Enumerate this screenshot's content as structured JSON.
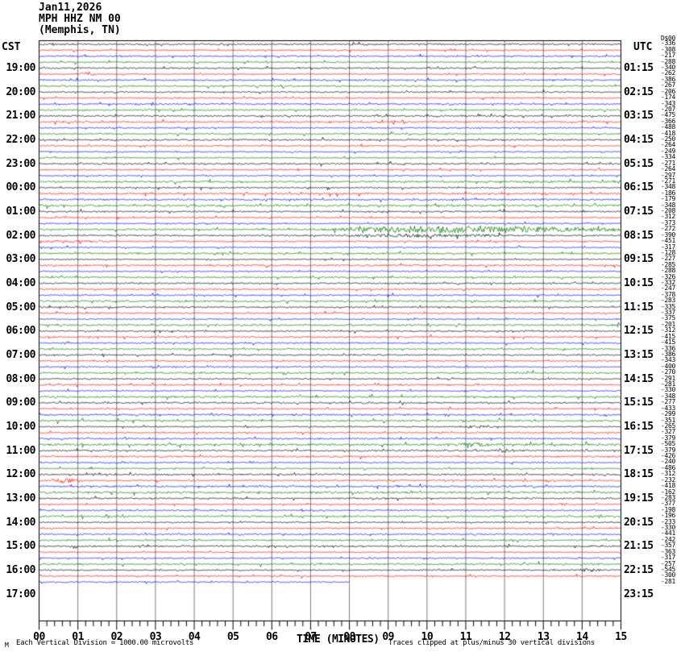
{
  "header": {
    "date": "Jan11,2026",
    "station": "MPH HHZ NM 00",
    "location": "(Memphis, TN)"
  },
  "corner_labels": {
    "left_timezone": "CST",
    "right_timezone": "UTC",
    "dc_column_header": "D$00"
  },
  "footer": {
    "scale_note": "Each Vertical Division = 1000.00 microvolts",
    "x_axis_title": "TIME (MINUTES)",
    "clip_note": "Traces clipped at plus/minus 30 vertical divisions",
    "watermark": "M"
  },
  "colors": {
    "background": "#ffffff",
    "grid": "#808080",
    "border": "#000000",
    "text": "#000000"
  },
  "chart_data": {
    "type": "line",
    "subtype": "helicorder-seismogram",
    "title": "MPH HHZ NM 00 (Memphis, TN) Jan11,2026",
    "xlabel": "TIME (MINUTES)",
    "x_range": [
      0,
      15
    ],
    "minutes_per_row": 15,
    "grid": "vertical-every-minute",
    "minute_labels": [
      "00",
      "01",
      "02",
      "03",
      "04",
      "05",
      "06",
      "07",
      "08",
      "09",
      "10",
      "11",
      "12",
      "13",
      "14",
      "15"
    ],
    "rows_total": 96,
    "traces_plotted": 91,
    "row_color_cycle": [
      "#000000",
      "#ff0000",
      "#0000ff",
      "#007700"
    ],
    "left_time_labels": [
      "19:00",
      "20:00",
      "21:00",
      "22:00",
      "23:00",
      "00:00",
      "01:00",
      "02:00",
      "03:00",
      "04:00",
      "05:00",
      "06:00",
      "07:00",
      "08:00",
      "09:00",
      "10:00",
      "11:00",
      "12:00",
      "13:00",
      "14:00",
      "15:00",
      "16:00",
      "17:00"
    ],
    "right_time_labels": [
      "01:15",
      "02:15",
      "03:15",
      "04:15",
      "05:15",
      "06:15",
      "07:15",
      "08:15",
      "09:15",
      "10:15",
      "11:15",
      "12:15",
      "13:15",
      "14:15",
      "15:15",
      "16:15",
      "17:15",
      "18:15",
      "19:15",
      "20:15",
      "21:15",
      "22:15",
      "23:15"
    ],
    "dc_offsets": [
      -336,
      -308,
      -217,
      -288,
      -340,
      -262,
      -386,
      -267,
      -206,
      -174,
      -343,
      -207,
      -475,
      -366,
      -488,
      -418,
      -250,
      -264,
      -249,
      -334,
      -271,
      -264,
      -297,
      -271,
      -348,
      -186,
      -179,
      -348,
      -208,
      -312,
      -373,
      -272,
      -390,
      -451,
      -317,
      -128,
      -227,
      -285,
      -288,
      -326,
      -332,
      -247,
      -378,
      -283,
      -335,
      -337,
      -375,
      -201,
      -312,
      -415,
      -415,
      -336,
      -386,
      -343,
      -400,
      -270,
      -291,
      -281,
      -330,
      -348,
      -277,
      -433,
      -299,
      -351,
      -265,
      -327,
      -379,
      -505,
      -379,
      -426,
      -240,
      -486,
      -312,
      -232,
      -418,
      -162,
      -283,
      -377,
      -198,
      -196,
      -233,
      -330,
      -441,
      -242,
      -357,
      -363,
      -317,
      -257,
      -545,
      -300,
      -281
    ],
    "last_trace": {
      "row_index": 90,
      "end_minute": 8
    },
    "events": [
      {
        "row": 5,
        "t0": 0.9,
        "peak": 1.15,
        "t1": 1.5,
        "amp": 2.5
      },
      {
        "row": 31,
        "t0": 7.0,
        "peak": 9.6,
        "t1": 15.0,
        "amp": 4.5
      },
      {
        "row": 32,
        "t0": 7.4,
        "peak": 9.6,
        "t1": 12.0,
        "amp": 1.6
      },
      {
        "row": 33,
        "t0": 0.0,
        "peak": 0.5,
        "t1": 2.0,
        "amp": 1.2
      },
      {
        "row": 64,
        "t0": 10.9,
        "peak": 11.2,
        "t1": 11.7,
        "amp": 2.4
      },
      {
        "row": 67,
        "t0": 10.8,
        "peak": 11.1,
        "t1": 11.6,
        "amp": 1.8
      },
      {
        "row": 68,
        "t0": 11.6,
        "peak": 11.9,
        "t1": 12.3,
        "amp": 2.2
      },
      {
        "row": 73,
        "t0": 0.3,
        "peak": 0.6,
        "t1": 1.1,
        "amp": 2.8
      },
      {
        "row": 77,
        "t0": 13.1,
        "peak": 13.35,
        "t1": 13.7,
        "amp": 2.4
      },
      {
        "row": 88,
        "t0": 13.8,
        "peak": 14.1,
        "t1": 14.5,
        "amp": 2.6
      }
    ]
  }
}
